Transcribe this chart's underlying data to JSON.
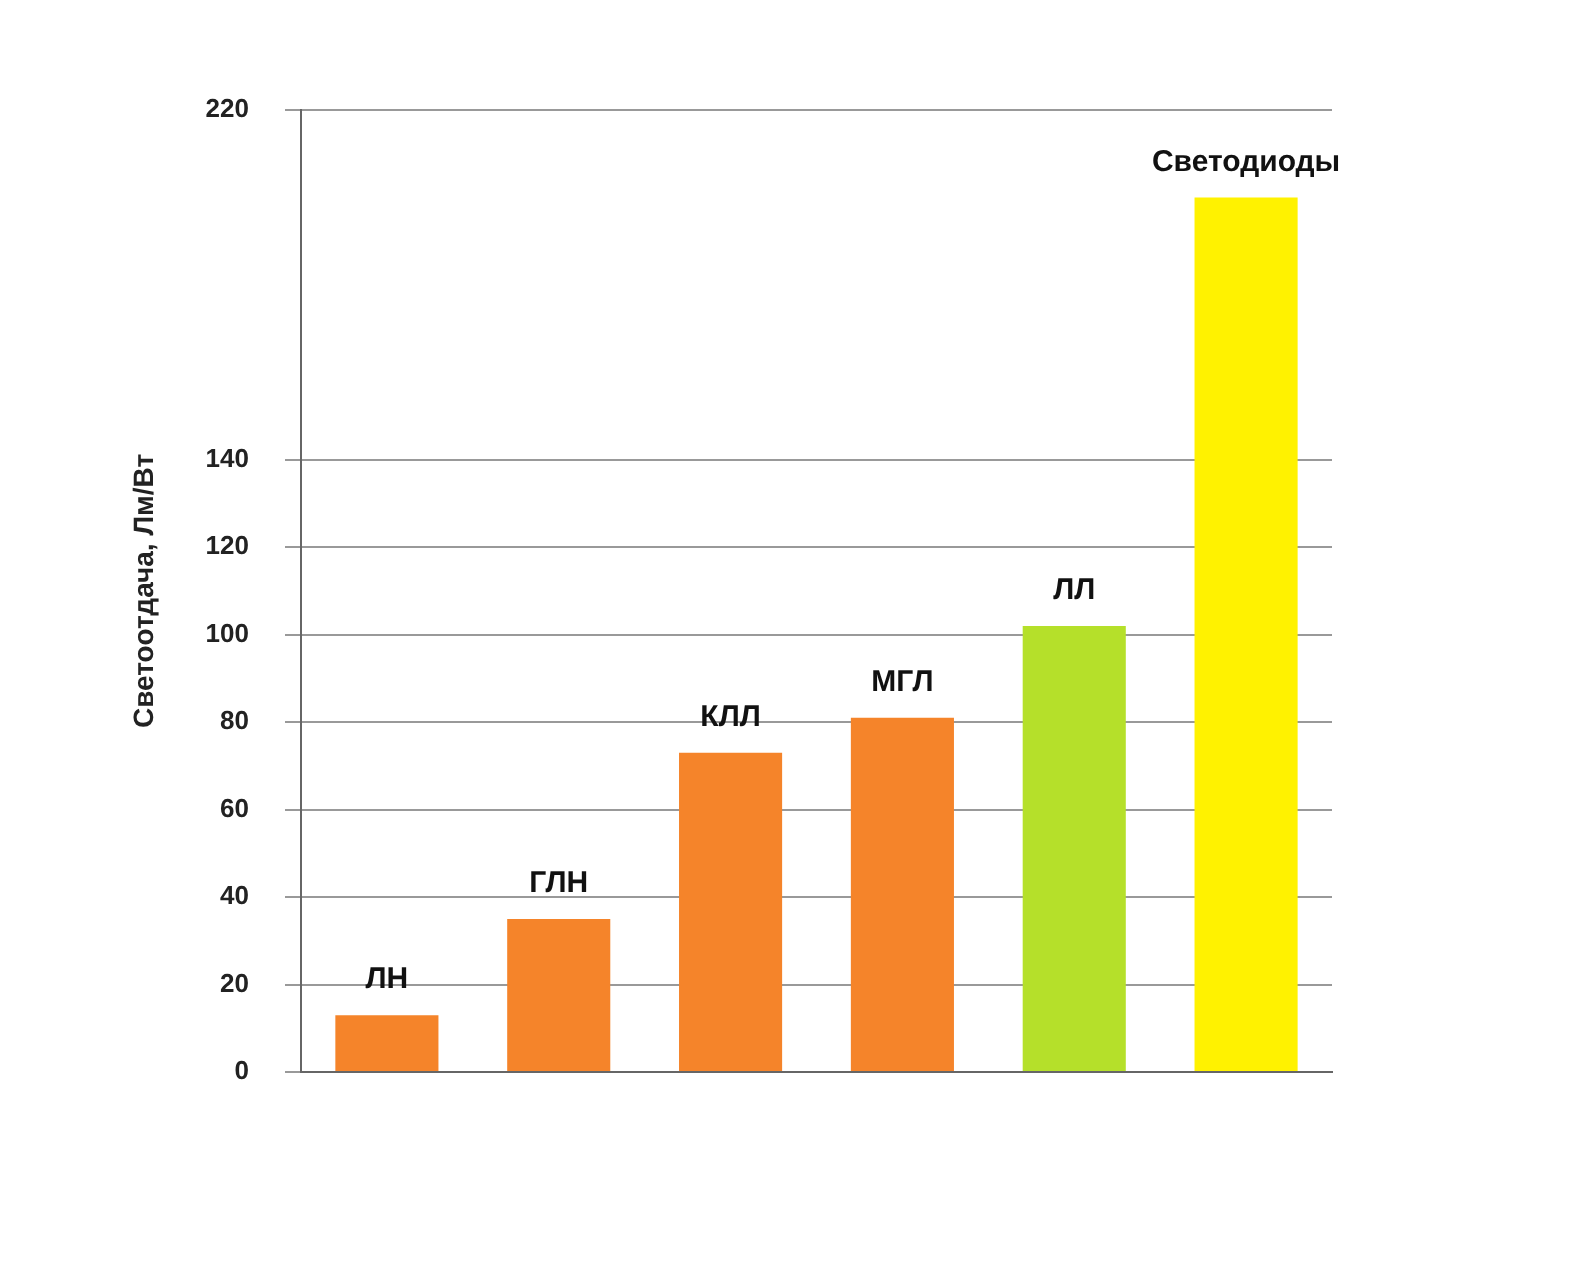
{
  "chart_data": {
    "type": "bar",
    "ylabel": "Светоотдача, Лм/Вт",
    "categories": [
      "ЛН",
      "ГЛН",
      "КЛЛ",
      "МГЛ",
      "ЛЛ",
      "Светодиоды"
    ],
    "values": [
      13,
      35,
      73,
      81,
      102,
      200
    ],
    "colors": [
      "#f5842a",
      "#f5842a",
      "#f5842a",
      "#f5842a",
      "#b5e02a",
      "#fff200"
    ],
    "ylim": [
      0,
      220
    ],
    "yticks": [
      0,
      20,
      40,
      60,
      80,
      100,
      120,
      140,
      220
    ],
    "grid": "y"
  }
}
